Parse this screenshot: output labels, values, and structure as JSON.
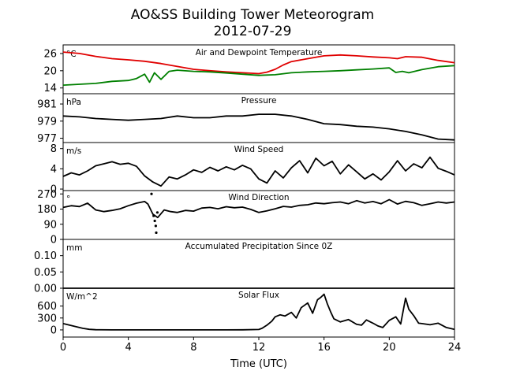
{
  "title": "AO&SS Building Tower Meteorogram",
  "subtitle": "2012-07-29",
  "chart_data": {
    "type": "line",
    "title": "AO&SS Building Tower Meteorogram",
    "subtitle": "2012-07-29",
    "xlabel": "Time (UTC)",
    "xlim": [
      0,
      24
    ],
    "xticks": [
      0,
      4,
      8,
      12,
      16,
      20,
      24
    ],
    "panels": [
      {
        "name": "temperature",
        "title": "Air and Dewpoint Temperature",
        "unit": "°C",
        "ylim": [
          12,
          29
        ],
        "yticks": [
          14,
          20,
          26
        ],
        "series": [
          {
            "color": "#e00000",
            "x": [
              0,
              1,
              2,
              3,
              4,
              5,
              6,
              7,
              8,
              9,
              10,
              11,
              12,
              12.5,
              13,
              13.5,
              14,
              15,
              16,
              17,
              18,
              19,
              20,
              20.5,
              21,
              22,
              23,
              24
            ],
            "y": [
              26.5,
              26,
              25,
              24.2,
              23.8,
              23.3,
              22.5,
              21.5,
              20.5,
              20,
              19.6,
              19.3,
              19,
              19.5,
              20.5,
              22,
              23.2,
              24.2,
              25.2,
              25.5,
              25.2,
              24.8,
              24.5,
              24.2,
              24.9,
              24.7,
              23.6,
              22.8
            ]
          },
          {
            "color": "#008000",
            "x": [
              0,
              1,
              2,
              3,
              4,
              4.5,
              5,
              5.3,
              5.6,
              6,
              6.5,
              7,
              8,
              9,
              10,
              11,
              12,
              13,
              14,
              15,
              16,
              17,
              18,
              19,
              20,
              20.4,
              20.8,
              21.2,
              22,
              23,
              24
            ],
            "y": [
              15,
              15.3,
              15.6,
              16.3,
              16.6,
              17.3,
              18.8,
              16,
              19.3,
              17,
              19.8,
              20.2,
              19.8,
              19.6,
              19.2,
              18.8,
              18.4,
              18.6,
              19.3,
              19.6,
              19.8,
              20,
              20.3,
              20.6,
              21,
              19.4,
              19.8,
              19.3,
              20.4,
              21.4,
              21.8
            ]
          }
        ]
      },
      {
        "name": "pressure",
        "title": "Pressure",
        "unit": "hPa",
        "ylim": [
          976.5,
          982.2
        ],
        "yticks": [
          977,
          979,
          981
        ],
        "series": [
          {
            "color": "#000000",
            "x": [
              0,
              1,
              2,
              3,
              4,
              5,
              6,
              7,
              8,
              9,
              10,
              11,
              12,
              13,
              14,
              15,
              16,
              17,
              18,
              19,
              20,
              21,
              22,
              23,
              24
            ],
            "y": [
              979.6,
              979.5,
              979.3,
              979.2,
              979.1,
              979.2,
              979.3,
              979.6,
              979.4,
              979.4,
              979.6,
              979.6,
              979.8,
              979.8,
              979.6,
              979.2,
              978.7,
              978.6,
              978.4,
              978.3,
              978.1,
              977.8,
              977.4,
              976.9,
              976.8
            ]
          }
        ]
      },
      {
        "name": "wind_speed",
        "title": "Wind Speed",
        "unit": "m/s",
        "ylim": [
          -0.3,
          9.2
        ],
        "yticks": [
          0,
          4,
          8
        ],
        "series": [
          {
            "color": "#000000",
            "x": [
              0,
              0.5,
              1,
              1.5,
              2,
              2.5,
              3,
              3.5,
              4,
              4.5,
              5,
              5.5,
              6,
              6.5,
              7,
              7.5,
              8,
              8.5,
              9,
              9.5,
              10,
              10.5,
              11,
              11.5,
              12,
              12.5,
              13,
              13.5,
              14,
              14.5,
              15,
              15.5,
              16,
              16.5,
              17,
              17.5,
              18,
              18.5,
              19,
              19.5,
              20,
              20.5,
              21,
              21.5,
              22,
              22.5,
              23,
              23.5,
              24
            ],
            "y": [
              2.5,
              3.2,
              2.8,
              3.6,
              4.6,
              5.0,
              5.4,
              4.9,
              5.1,
              4.5,
              2.6,
              1.4,
              0.6,
              2.4,
              2.0,
              2.8,
              3.8,
              3.3,
              4.3,
              3.6,
              4.4,
              3.8,
              4.7,
              4.0,
              2.0,
              1.2,
              3.6,
              2.2,
              4.2,
              5.6,
              3.2,
              6.1,
              4.6,
              5.5,
              3.0,
              4.8,
              3.4,
              2.0,
              3.0,
              1.8,
              3.4,
              5.6,
              3.6,
              5.0,
              4.2,
              6.3,
              4.1,
              3.5,
              2.8
            ]
          }
        ]
      },
      {
        "name": "wind_direction",
        "title": "Wind Direction",
        "unit": "°",
        "ylim": [
          0,
          290
        ],
        "yticks": [
          0,
          90,
          180,
          270
        ],
        "series": [
          {
            "color": "#000000",
            "x": [
              0,
              0.5,
              1,
              1.5,
              2,
              2.5,
              3,
              3.5,
              4,
              4.5,
              5,
              5.2,
              5.5,
              5.8,
              6.2,
              6.6,
              7,
              7.5,
              8,
              8.5,
              9,
              9.5,
              10,
              10.5,
              11,
              11.5,
              12,
              12.5,
              13,
              13.5,
              14,
              14.5,
              15,
              15.5,
              16,
              16.5,
              17,
              17.5,
              18,
              18.5,
              19,
              19.5,
              20,
              20.5,
              21,
              21.5,
              22,
              22.5,
              23,
              23.5,
              24
            ],
            "y": [
              190,
              200,
              195,
              215,
              175,
              165,
              172,
              182,
              200,
              215,
              225,
              210,
              150,
              130,
              175,
              165,
              160,
              172,
              168,
              186,
              190,
              182,
              194,
              188,
              192,
              178,
              160,
              170,
              182,
              196,
              192,
              202,
              206,
              216,
              212,
              218,
              222,
              212,
              230,
              216,
              225,
              212,
              236,
              210,
              226,
              218,
              202,
              212,
              222,
              216,
              222
            ]
          }
        ],
        "scatter": {
          "x": [
            5.42,
            5.55,
            5.62,
            5.68,
            5.71,
            5.78
          ],
          "y": [
            270,
            140,
            110,
            80,
            40,
            160
          ]
        }
      },
      {
        "name": "precipitation",
        "title": "Accumulated Precipitation Since 0Z",
        "unit": "mm",
        "ylim": [
          0,
          0.15
        ],
        "yticks": [
          "0.00",
          "0.05",
          "0.10"
        ],
        "series": [
          {
            "color": "#000000",
            "x": [
              0,
              24
            ],
            "y": [
              0,
              0
            ]
          }
        ]
      },
      {
        "name": "solar_flux",
        "title": "Solar Flux",
        "unit": "W/m^2",
        "ylim": [
          -180,
          1050
        ],
        "yticks": [
          0,
          300,
          600
        ],
        "series": [
          {
            "color": "#000000",
            "x": [
              0,
              0.4,
              0.8,
              1.2,
              1.6,
              2,
              3,
              4,
              6,
              8,
              10,
              11,
              12,
              12.2,
              12.5,
              12.8,
              13,
              13.3,
              13.6,
              14,
              14.3,
              14.6,
              15,
              15.3,
              15.6,
              15.8,
              16,
              16.2,
              16.4,
              16.6,
              17,
              17.5,
              18,
              18.3,
              18.6,
              19,
              19.3,
              19.6,
              20,
              20.4,
              20.7,
              21,
              21.2,
              21.5,
              21.8,
              22,
              22.5,
              23,
              23.5,
              24
            ],
            "y": [
              160,
              120,
              80,
              40,
              15,
              5,
              0,
              0,
              0,
              0,
              0,
              2,
              10,
              40,
              120,
              220,
              330,
              380,
              350,
              440,
              300,
              560,
              680,
              420,
              760,
              820,
              900,
              660,
              460,
              280,
              200,
              260,
              140,
              120,
              250,
              170,
              100,
              60,
              240,
              330,
              150,
              800,
              520,
              360,
              170,
              160,
              130,
              170,
              60,
              15
            ]
          }
        ]
      }
    ]
  }
}
